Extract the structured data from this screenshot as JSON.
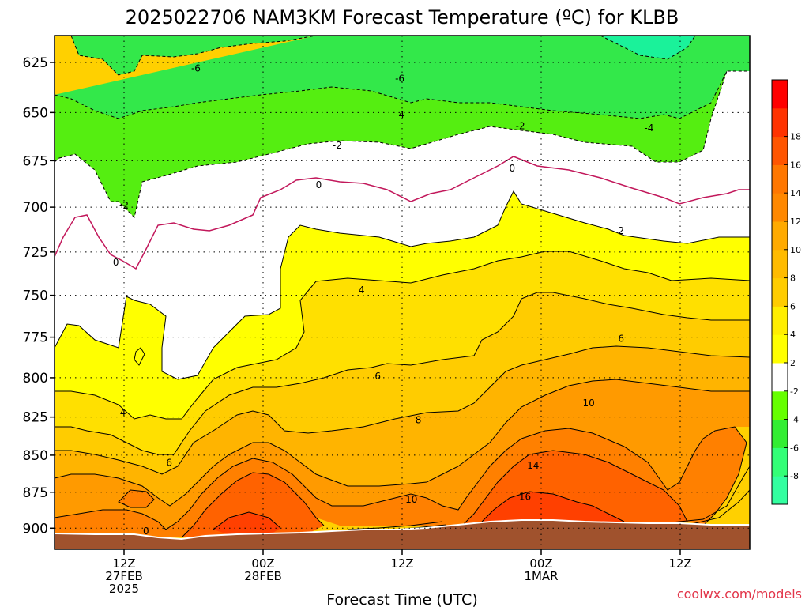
{
  "chart_data": {
    "type": "heatmap",
    "title": "2025022706 NAM3KM Forecast Temperature (ºC) for KLBB",
    "xlabel": "Forecast Time (UTC)",
    "ylabel": "",
    "credit": "coolwx.com/models",
    "x_ticks": [
      {
        "hour": 6,
        "lines": [
          "12Z",
          "27FEB",
          "2025"
        ]
      },
      {
        "hour": 18,
        "lines": [
          "00Z",
          "28FEB"
        ]
      },
      {
        "hour": 30,
        "lines": [
          "12Z"
        ]
      },
      {
        "hour": 42,
        "lines": [
          "00Z",
          "1MAR"
        ]
      },
      {
        "hour": 54,
        "lines": [
          "12Z"
        ]
      }
    ],
    "xlim": [
      0,
      60
    ],
    "y_ticks": [
      625,
      650,
      675,
      700,
      725,
      750,
      775,
      800,
      825,
      850,
      875,
      900
    ],
    "ylim": [
      915,
      612
    ],
    "y_scale": "log-pressure",
    "grid": "dotted",
    "colorbar": {
      "levels": [
        -10,
        -8,
        -6,
        -4,
        -2,
        2,
        4,
        6,
        8,
        10,
        12,
        14,
        16,
        18,
        20
      ],
      "labels": [
        "18",
        "16",
        "14",
        "12",
        "10",
        "8",
        "6",
        "4",
        "2",
        "-2",
        "-4",
        "-6",
        "-8"
      ],
      "colors": [
        "#33ffa0",
        "#33ff77",
        "#33ee33",
        "#66ff00",
        "#ffffff",
        "#ffff00",
        "#ffee00",
        "#ffcc00",
        "#ffbb00",
        "#ffaa00",
        "#ff8800",
        "#ff7700",
        "#ff5500",
        "#ff3300",
        "#ff0000"
      ]
    },
    "fill_colors": {
      "le_-6": "#1af29a",
      "-6_-4": "#33e84a",
      "-4_-2": "#55ee11",
      "-2_2": "#ffffff",
      "2_4": "#ffff00",
      "4_6": "#ffe000",
      "6_8": "#ffcc00",
      "8_10": "#ffb400",
      "10_12": "#ff9a00",
      "12_14": "#ff8000",
      "14_16": "#ff6200",
      "16_18": "#ff4000",
      "terrain": "#a0522d"
    },
    "contour_labels": [
      {
        "text": "-6",
        "hour": 12.2,
        "p": 628
      },
      {
        "text": "-6",
        "hour": 29.8,
        "p": 633
      },
      {
        "text": "-4",
        "hour": 29.8,
        "p": 651
      },
      {
        "text": "-2",
        "hour": 40.2,
        "p": 657
      },
      {
        "text": "-4",
        "hour": 51.3,
        "p": 658
      },
      {
        "text": "-2",
        "hour": 24.4,
        "p": 667
      },
      {
        "text": "-2",
        "hour": 6.0,
        "p": 699
      },
      {
        "text": "0",
        "hour": 22.8,
        "p": 688
      },
      {
        "text": "0",
        "hour": 39.5,
        "p": 679
      },
      {
        "text": "0",
        "hour": 5.3,
        "p": 731
      },
      {
        "text": "2",
        "hour": 48.9,
        "p": 713
      },
      {
        "text": "4",
        "hour": 26.5,
        "p": 747
      },
      {
        "text": "6",
        "hour": 48.9,
        "p": 776
      },
      {
        "text": "6",
        "hour": 27.9,
        "p": 799
      },
      {
        "text": "4",
        "hour": 5.9,
        "p": 822
      },
      {
        "text": "8",
        "hour": 31.4,
        "p": 827
      },
      {
        "text": "10",
        "hour": 46.1,
        "p": 816
      },
      {
        "text": "6",
        "hour": 9.9,
        "p": 855
      },
      {
        "text": "14",
        "hour": 41.3,
        "p": 857
      },
      {
        "text": "16",
        "hour": 40.6,
        "p": 878
      },
      {
        "text": "10",
        "hour": 30.8,
        "p": 880
      },
      {
        "text": "0",
        "hour": 7.9,
        "p": 902
      }
    ]
  }
}
